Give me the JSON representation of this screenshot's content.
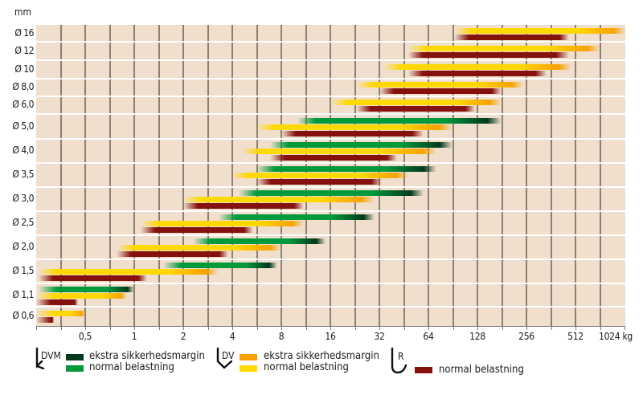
{
  "chart_data": {
    "type": "bar",
    "subtype": "floating-range (horizontal), log2 x-axis",
    "y_unit": "mm",
    "x_unit": "kg",
    "xaxis": {
      "scale": "log2",
      "ticks": [
        "0,5",
        "1",
        "2",
        "4",
        "8",
        "16",
        "32",
        "64",
        "128",
        "256",
        "512",
        "1024 kg"
      ],
      "range": [
        0.25,
        1400
      ]
    },
    "categories": [
      "Ø 16",
      "Ø 12",
      "Ø 10",
      "Ø 8,0",
      "Ø 6,0",
      "Ø 5,0",
      "Ø 4,0",
      "Ø 3,5",
      "Ø 3,0",
      "Ø 2,5",
      "Ø 2,0",
      "Ø 1,5",
      "Ø 1,1",
      "Ø 0,6"
    ],
    "series": [
      {
        "name": "DVM normal belastning / ekstra sikkerhedsmargin",
        "color_normal": "#009a3c",
        "color_extra": "#003a1c",
        "ranges": [
          null,
          null,
          null,
          null,
          null,
          [
            10,
            181
          ],
          [
            6.8,
            90
          ],
          [
            5.6,
            72
          ],
          [
            4.4,
            60
          ],
          [
            3.3,
            30
          ],
          [
            2.3,
            15
          ],
          [
            1.5,
            7.6
          ],
          [
            0.26,
            1.0
          ],
          null
        ]
      },
      {
        "name": "DV normal belastning / ekstra sikkerhedsmargin",
        "color_normal": "#ffd800",
        "color_extra": "#f7a200",
        "ranges": [
          [
            92,
            1260
          ],
          [
            48,
            725
          ],
          [
            34,
            482
          ],
          [
            23,
            246
          ],
          [
            16,
            181
          ],
          [
            5.6,
            90
          ],
          [
            4.6,
            72
          ],
          [
            3.9,
            48
          ],
          [
            2.0,
            30
          ],
          [
            1.1,
            11
          ],
          [
            0.78,
            8
          ],
          [
            0.26,
            3.3
          ],
          [
            0.25,
            0.9
          ],
          [
            0.25,
            0.5
          ]
        ]
      },
      {
        "name": "R normal belastning",
        "color": "#85110d",
        "ranges": [
          [
            92,
            470
          ],
          [
            48,
            470
          ],
          [
            48,
            340
          ],
          [
            32,
            181
          ],
          [
            23,
            124
          ],
          [
            8,
            60
          ],
          [
            6.8,
            41
          ],
          [
            5.6,
            33
          ],
          [
            2.0,
            11
          ],
          [
            1.1,
            5.4
          ],
          [
            0.78,
            3.8
          ],
          [
            0.26,
            1.2
          ],
          [
            0.25,
            0.45
          ],
          [
            0.25,
            0.32
          ]
        ]
      }
    ]
  },
  "yaxis": {
    "unit_label": "mm"
  },
  "rows": [
    {
      "label": "Ø 16",
      "top": 0,
      "h": 21
    },
    {
      "label": "Ø 12",
      "top": 21,
      "h": 23
    },
    {
      "label": "Ø 10",
      "top": 44,
      "h": 23
    },
    {
      "label": "Ø 8,0",
      "top": 67,
      "h": 22
    },
    {
      "label": "Ø 6,0",
      "top": 89,
      "h": 22
    },
    {
      "label": "Ø 5,0",
      "top": 111,
      "h": 31
    },
    {
      "label": "Ø 4,0",
      "top": 142,
      "h": 30
    },
    {
      "label": "Ø 3,5",
      "top": 172,
      "h": 30
    },
    {
      "label": "Ø 3,0",
      "top": 202,
      "h": 30
    },
    {
      "label": "Ø 2,5",
      "top": 232,
      "h": 30
    },
    {
      "label": "Ø 2,0",
      "top": 262,
      "h": 30
    },
    {
      "label": "Ø 1,5",
      "top": 292,
      "h": 30
    },
    {
      "label": "Ø 1,1",
      "top": 322,
      "h": 29
    },
    {
      "label": "Ø 0,6",
      "top": 351,
      "h": 24
    }
  ],
  "xlabels": [
    {
      "text": "0,5",
      "x": 106
    },
    {
      "text": "1",
      "x": 167
    },
    {
      "text": "2",
      "x": 228
    },
    {
      "text": "4",
      "x": 289
    },
    {
      "text": "8",
      "x": 350
    },
    {
      "text": "16",
      "x": 411
    },
    {
      "text": "32",
      "x": 472
    },
    {
      "text": "64",
      "x": 533
    },
    {
      "text": "128",
      "x": 594
    },
    {
      "text": "256",
      "x": 655
    },
    {
      "text": "512",
      "x": 716
    },
    {
      "text": "1024 kg",
      "x": 766
    }
  ],
  "legend": {
    "dvm": {
      "code": "DVM",
      "extra_label": "ekstra sikkerhedsmargin",
      "normal_label": "normal belastning",
      "extra_color": "#003a1c",
      "normal_color": "#009a3c"
    },
    "dv": {
      "code": "DV",
      "extra_label": "ekstra sikkerhedsmargin",
      "normal_label": "normal belastning",
      "extra_color": "#f7a200",
      "normal_color": "#ffd800"
    },
    "r": {
      "code": "R",
      "normal_label": "normal belastning",
      "normal_color": "#85110d"
    }
  }
}
